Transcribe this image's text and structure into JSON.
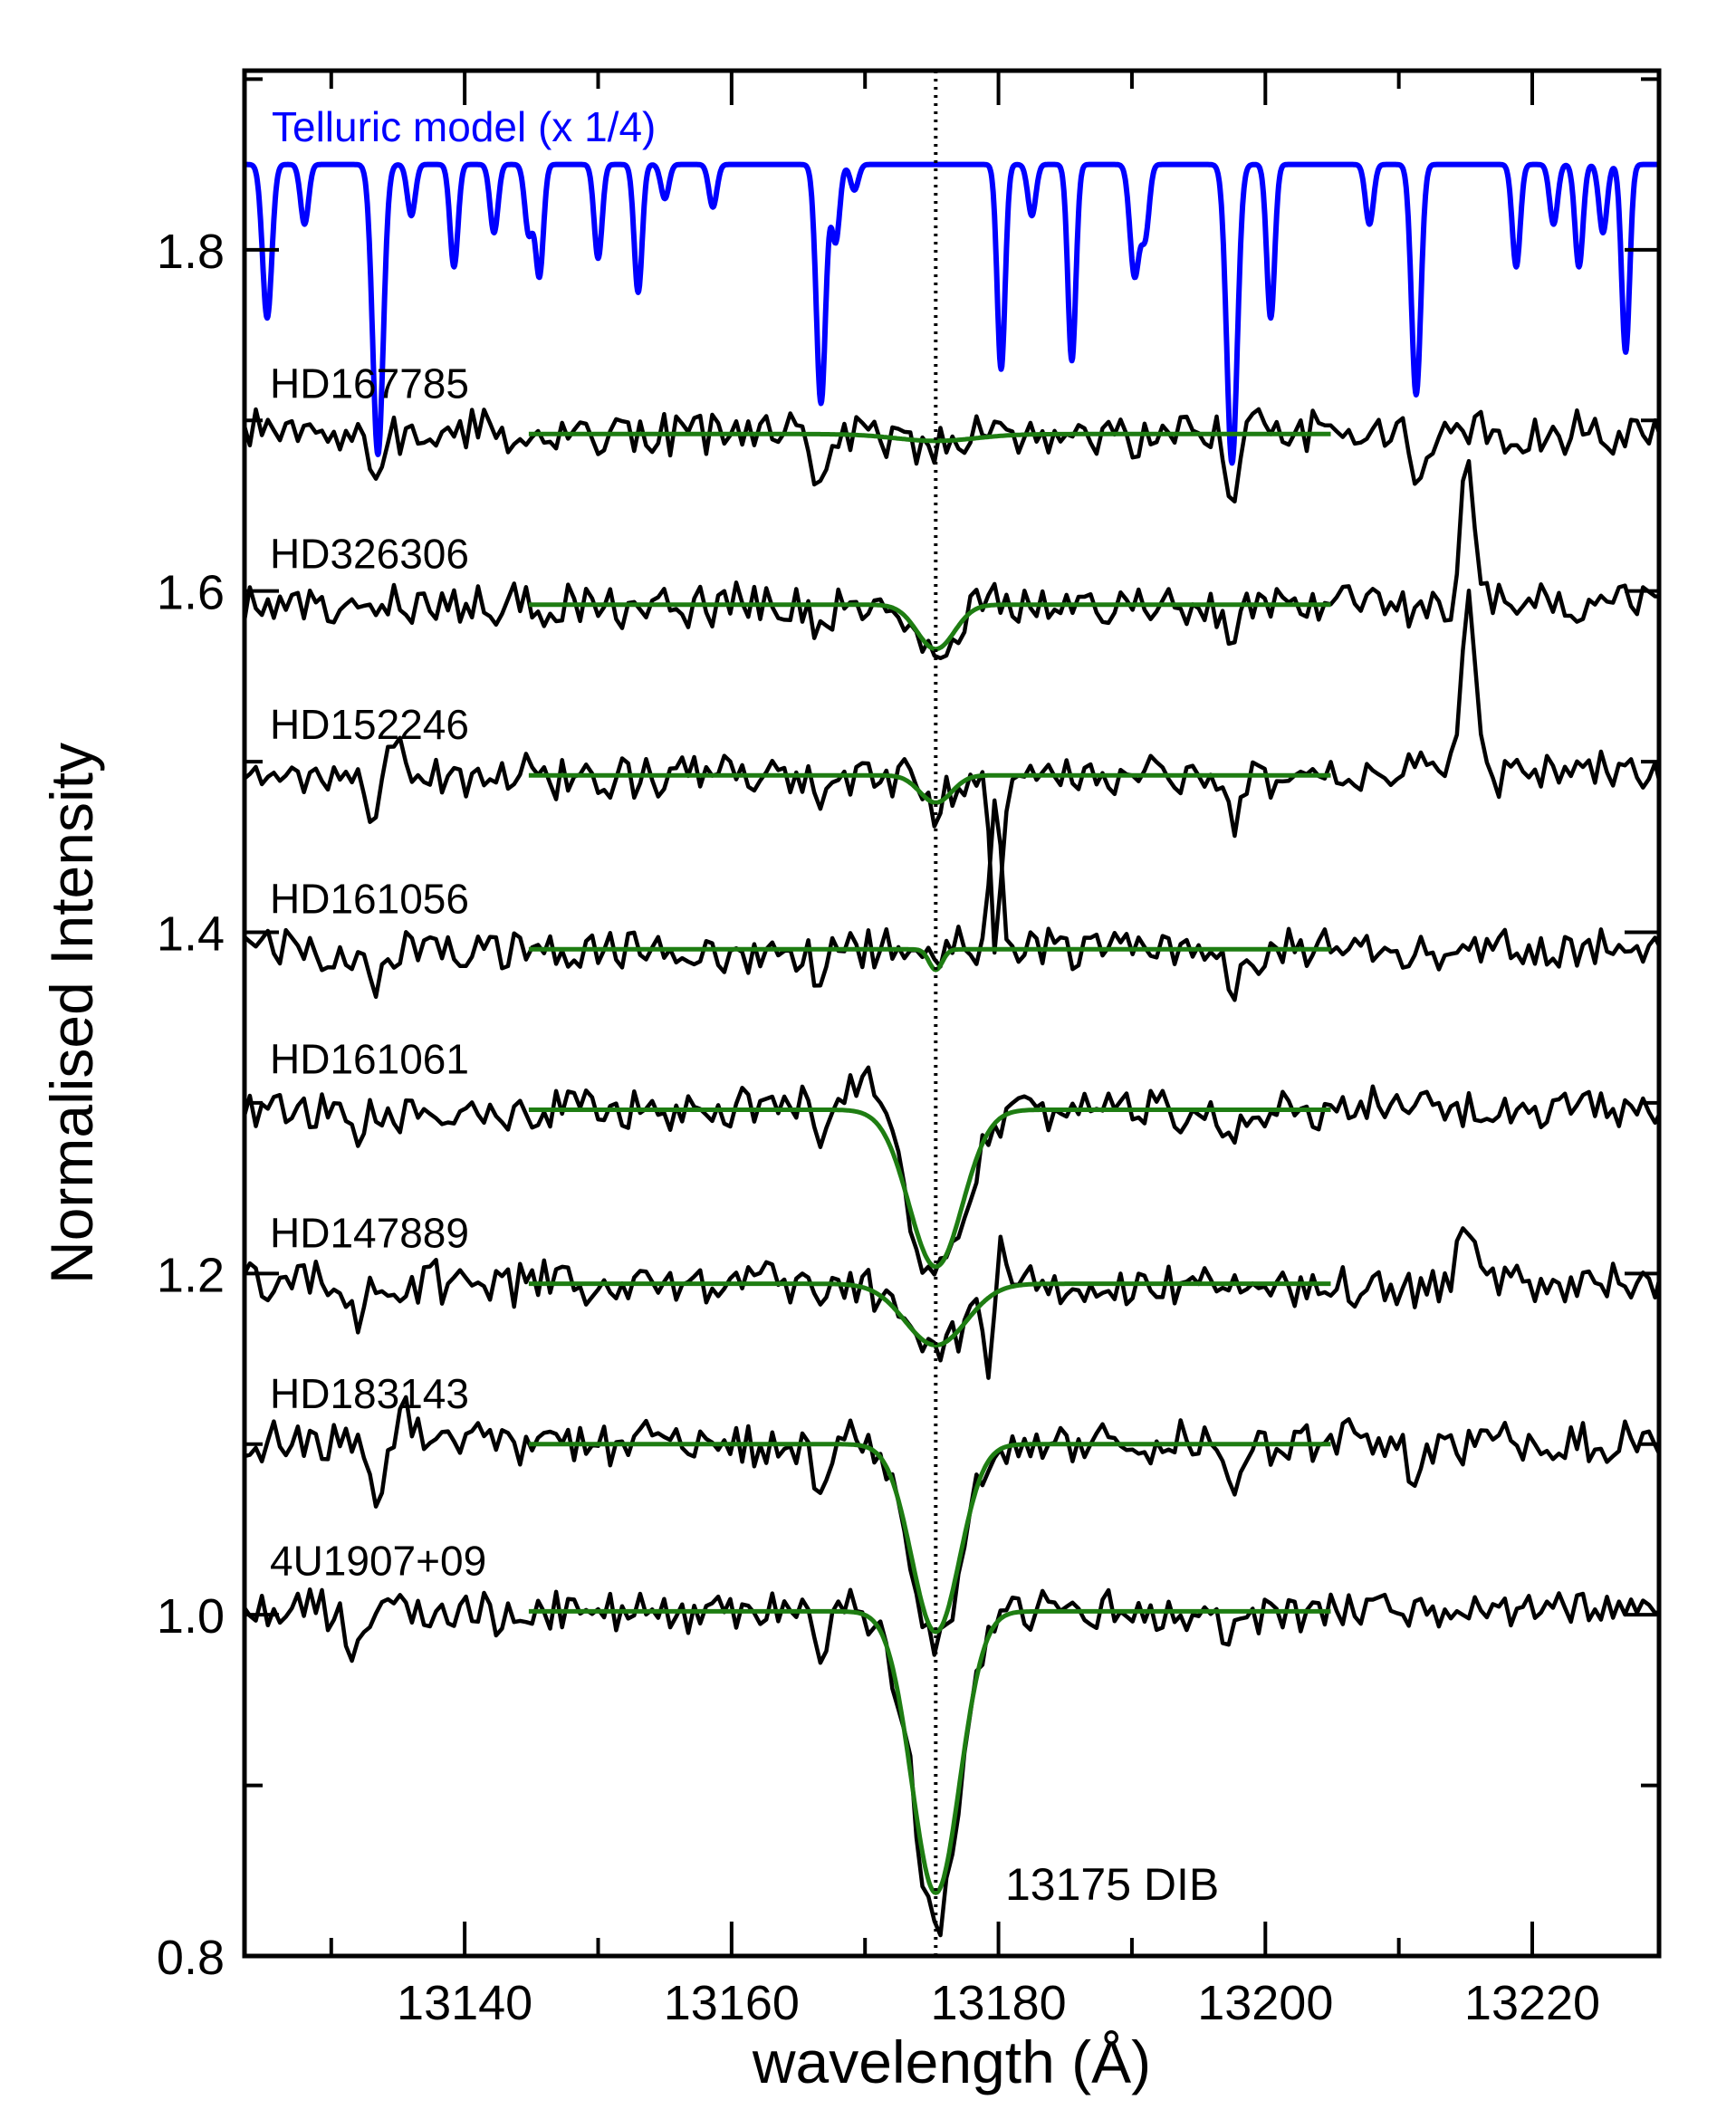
{
  "chart_data": {
    "type": "line",
    "title": "",
    "xlabel": "wavelength (Å)",
    "ylabel": "Normalised Intensity",
    "xlim": [
      13123.5,
      13229.5
    ],
    "ylim": [
      0.8,
      1.905
    ],
    "xticks": [
      13140,
      13160,
      13180,
      13200,
      13220
    ],
    "xtick_labels": [
      "13140",
      "13160",
      "13180",
      "13200",
      "13220"
    ],
    "yticks": [
      0.8,
      1.0,
      1.2,
      1.4,
      1.6,
      1.8
    ],
    "ytick_labels": [
      "0.8",
      "1.0",
      "1.2",
      "1.4",
      "1.6",
      "1.8"
    ],
    "dib_center": 13175.3,
    "dib_label": "13175 DIB",
    "telluric": {
      "name": "Telluric model (x 1/4)",
      "color": "#0000ff",
      "continuum": 1.85,
      "lines": [
        [
          13125.2,
          0.09,
          0.35
        ],
        [
          13128.0,
          0.035,
          0.3
        ],
        [
          13133.5,
          0.17,
          0.4
        ],
        [
          13136.0,
          0.03,
          0.3
        ],
        [
          13139.2,
          0.06,
          0.3
        ],
        [
          13142.2,
          0.04,
          0.3
        ],
        [
          13144.8,
          0.04,
          0.3
        ],
        [
          13145.6,
          0.065,
          0.3
        ],
        [
          13150.0,
          0.055,
          0.3
        ],
        [
          13153.0,
          0.075,
          0.3
        ],
        [
          13155.0,
          0.02,
          0.3
        ],
        [
          13158.6,
          0.025,
          0.3
        ],
        [
          13166.7,
          0.14,
          0.35
        ],
        [
          13167.8,
          0.045,
          0.3
        ],
        [
          13169.2,
          0.015,
          0.3
        ],
        [
          13180.2,
          0.12,
          0.3
        ],
        [
          13182.5,
          0.03,
          0.3
        ],
        [
          13185.5,
          0.115,
          0.3
        ],
        [
          13190.2,
          0.065,
          0.35
        ],
        [
          13191.0,
          0.04,
          0.3
        ],
        [
          13197.5,
          0.175,
          0.4
        ],
        [
          13200.4,
          0.09,
          0.3
        ],
        [
          13207.8,
          0.035,
          0.3
        ],
        [
          13211.3,
          0.135,
          0.35
        ],
        [
          13218.8,
          0.06,
          0.3
        ],
        [
          13221.6,
          0.035,
          0.3
        ],
        [
          13223.5,
          0.06,
          0.3
        ],
        [
          13225.3,
          0.04,
          0.3
        ],
        [
          13227.0,
          0.11,
          0.3
        ]
      ]
    },
    "series": [
      {
        "name": "HD167785",
        "continuum": 1.692,
        "fit_depth": 0.004,
        "fit_sigma": 3.0,
        "fit_range": [
          13144.8,
          13205.0
        ],
        "seed": 7,
        "features": [
          [
            13133.5,
            -0.035,
            0.5
          ],
          [
            13166.7,
            -0.03,
            0.5
          ],
          [
            13197.5,
            -0.032,
            0.5
          ],
          [
            13199.0,
            0.015,
            0.5
          ],
          [
            13211.3,
            -0.025,
            0.5
          ],
          [
            13190.2,
            -0.02,
            0.5
          ]
        ]
      },
      {
        "name": "HD326306",
        "continuum": 1.592,
        "fit_depth": 0.026,
        "fit_sigma": 1.4,
        "fit_range": [
          13144.8,
          13205.0
        ],
        "seed": 13,
        "features": [
          [
            13215.2,
            0.085,
            0.5
          ],
          [
            13197.5,
            -0.02,
            0.5
          ],
          [
            13133.5,
            -0.015,
            0.5
          ],
          [
            13166.7,
            -0.02,
            0.5
          ]
        ]
      },
      {
        "name": "HD152246",
        "continuum": 1.492,
        "fit_depth": 0.016,
        "fit_sigma": 1.2,
        "fit_range": [
          13144.8,
          13205.0
        ],
        "seed": 21,
        "features": [
          [
            13133.0,
            -0.03,
            0.45
          ],
          [
            13135.0,
            0.035,
            0.45
          ],
          [
            13179.8,
            -0.11,
            0.35
          ],
          [
            13215.2,
            0.105,
            0.55
          ],
          [
            13197.5,
            -0.025,
            0.5
          ],
          [
            13166.7,
            -0.025,
            0.5
          ]
        ]
      },
      {
        "name": "HD161056",
        "continuum": 1.39,
        "fit_depth": 0.012,
        "fit_sigma": 0.5,
        "fit_range": [
          13144.8,
          13205.0
        ],
        "seed": 33,
        "features": [
          [
            13179.8,
            0.09,
            0.35
          ],
          [
            13133.5,
            -0.02,
            0.5
          ],
          [
            13197.5,
            -0.025,
            0.5
          ],
          [
            13166.7,
            -0.02,
            0.5
          ]
        ]
      },
      {
        "name": "HD161061",
        "continuum": 1.296,
        "fit_depth": 0.092,
        "fit_sigma": 2.0,
        "fit_range": [
          13144.8,
          13205.0
        ],
        "seed": 45,
        "features": [
          [
            13131.8,
            -0.022,
            0.5
          ],
          [
            13170.5,
            0.022,
            1.5
          ],
          [
            13166.7,
            -0.015,
            0.5
          ],
          [
            13197.5,
            -0.02,
            0.5
          ]
        ]
      },
      {
        "name": "HD147889",
        "continuum": 1.194,
        "fit_depth": 0.036,
        "fit_sigma": 2.3,
        "fit_range": [
          13144.8,
          13205.0
        ],
        "seed": 57,
        "features": [
          [
            13180.0,
            0.045,
            0.3
          ],
          [
            13179.4,
            -0.06,
            0.3
          ],
          [
            13215.0,
            0.035,
            0.5
          ],
          [
            13132.0,
            -0.02,
            0.5
          ],
          [
            13166.7,
            -0.02,
            0.5
          ]
        ]
      },
      {
        "name": "HD183143",
        "continuum": 1.1,
        "fit_depth": 0.11,
        "fit_sigma": 1.8,
        "fit_range": [
          13144.8,
          13205.0
        ],
        "seed": 69,
        "features": [
          [
            13133.5,
            -0.035,
            0.5
          ],
          [
            13135.5,
            0.018,
            0.5
          ],
          [
            13166.7,
            -0.03,
            0.5
          ],
          [
            13197.5,
            -0.035,
            0.5
          ],
          [
            13211.3,
            -0.025,
            0.5
          ]
        ]
      },
      {
        "name": "4U1907+09",
        "continuum": 1.002,
        "fit_depth": 0.165,
        "fit_sigma": 1.8,
        "fit_range": [
          13144.8,
          13205.0
        ],
        "seed": 81,
        "features": [
          [
            13131.5,
            -0.025,
            0.5
          ],
          [
            13166.7,
            -0.025,
            0.5
          ],
          [
            13197.5,
            -0.015,
            0.5
          ]
        ]
      }
    ],
    "spectrum_color": "#000000",
    "fit_color": "#1e7d12"
  }
}
